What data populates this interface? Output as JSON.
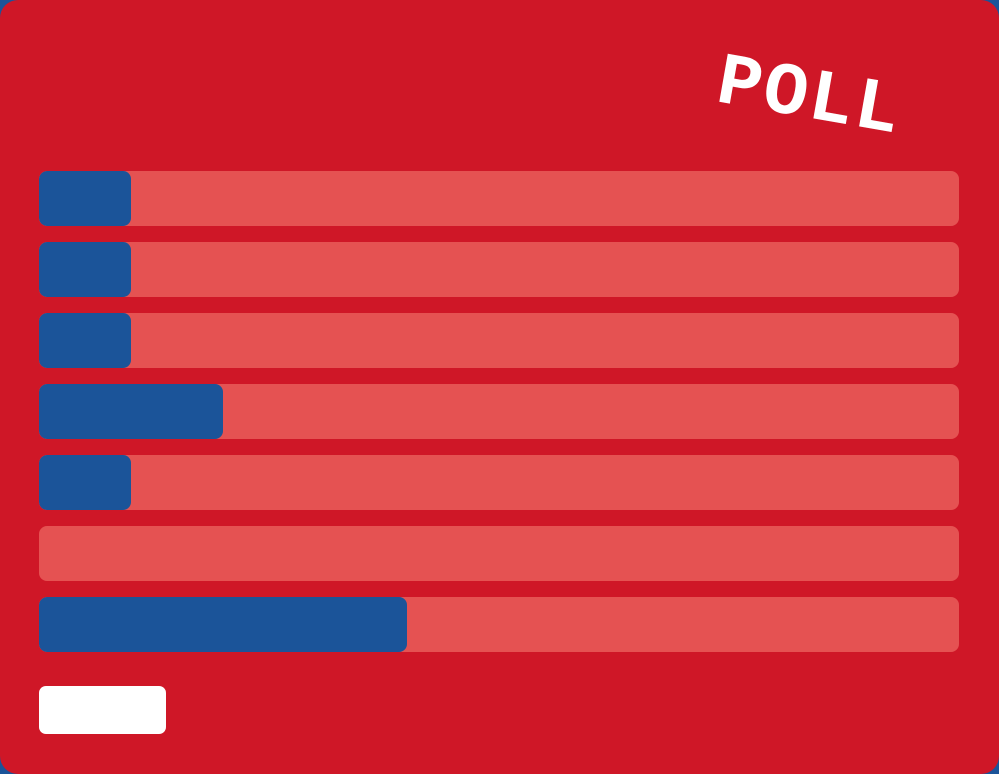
{
  "poll": {
    "title": "POLL",
    "colors": {
      "background": "#cf1727",
      "track": "#e55252",
      "fill": "#1b5499",
      "button": "#ffffff"
    },
    "options": [
      {
        "label": "",
        "percent": 10
      },
      {
        "label": "",
        "percent": 10
      },
      {
        "label": "",
        "percent": 10
      },
      {
        "label": "",
        "percent": 20
      },
      {
        "label": "",
        "percent": 10
      },
      {
        "label": "",
        "percent": 0
      },
      {
        "label": "",
        "percent": 40
      }
    ],
    "submit_label": ""
  }
}
